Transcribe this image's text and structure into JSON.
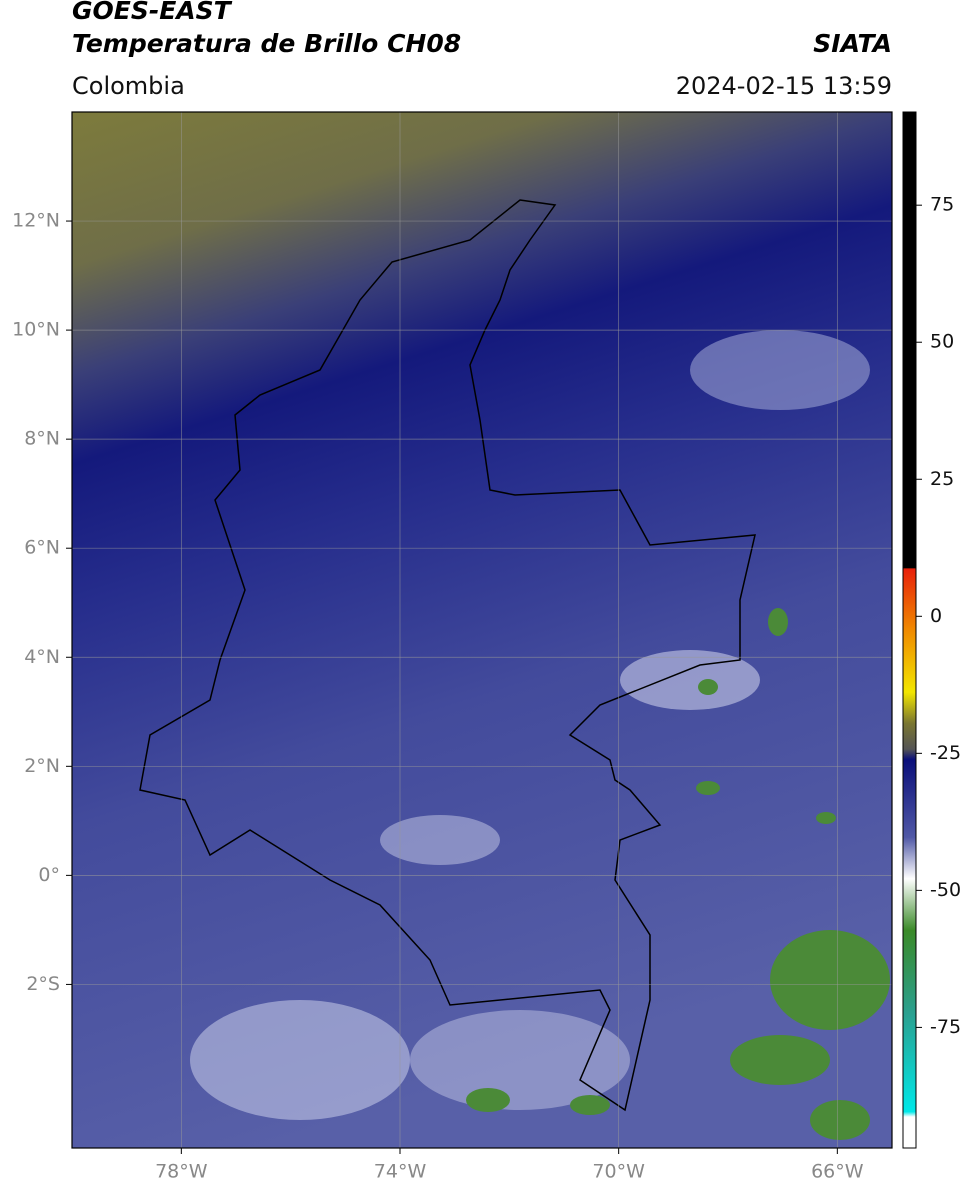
{
  "header": {
    "title_line1": "GOES-EAST",
    "title_line2": "Temperatura de Brillo CH08",
    "region": "Colombia",
    "source": "SIATA",
    "timestamp": "2024-02-15 13:59"
  },
  "map": {
    "xlim": [
      -80,
      -65
    ],
    "ylim": [
      -5,
      14
    ],
    "xticks": [
      {
        "value": -78,
        "label": "78°W"
      },
      {
        "value": -74,
        "label": "74°W"
      },
      {
        "value": -70,
        "label": "70°W"
      },
      {
        "value": -66,
        "label": "66°W"
      }
    ],
    "yticks": [
      {
        "value": 12,
        "label": "12°N"
      },
      {
        "value": 10,
        "label": "10°N"
      },
      {
        "value": 8,
        "label": "8°N"
      },
      {
        "value": 6,
        "label": "6°N"
      },
      {
        "value": 4,
        "label": "4°N"
      },
      {
        "value": 2,
        "label": "2°N"
      },
      {
        "value": 0,
        "label": "0°"
      },
      {
        "value": -2,
        "label": "2°S"
      }
    ]
  },
  "colorbar": {
    "lim": [
      -97,
      92
    ],
    "ticks": [
      75,
      50,
      25,
      0,
      -25,
      -50,
      -75
    ]
  }
}
